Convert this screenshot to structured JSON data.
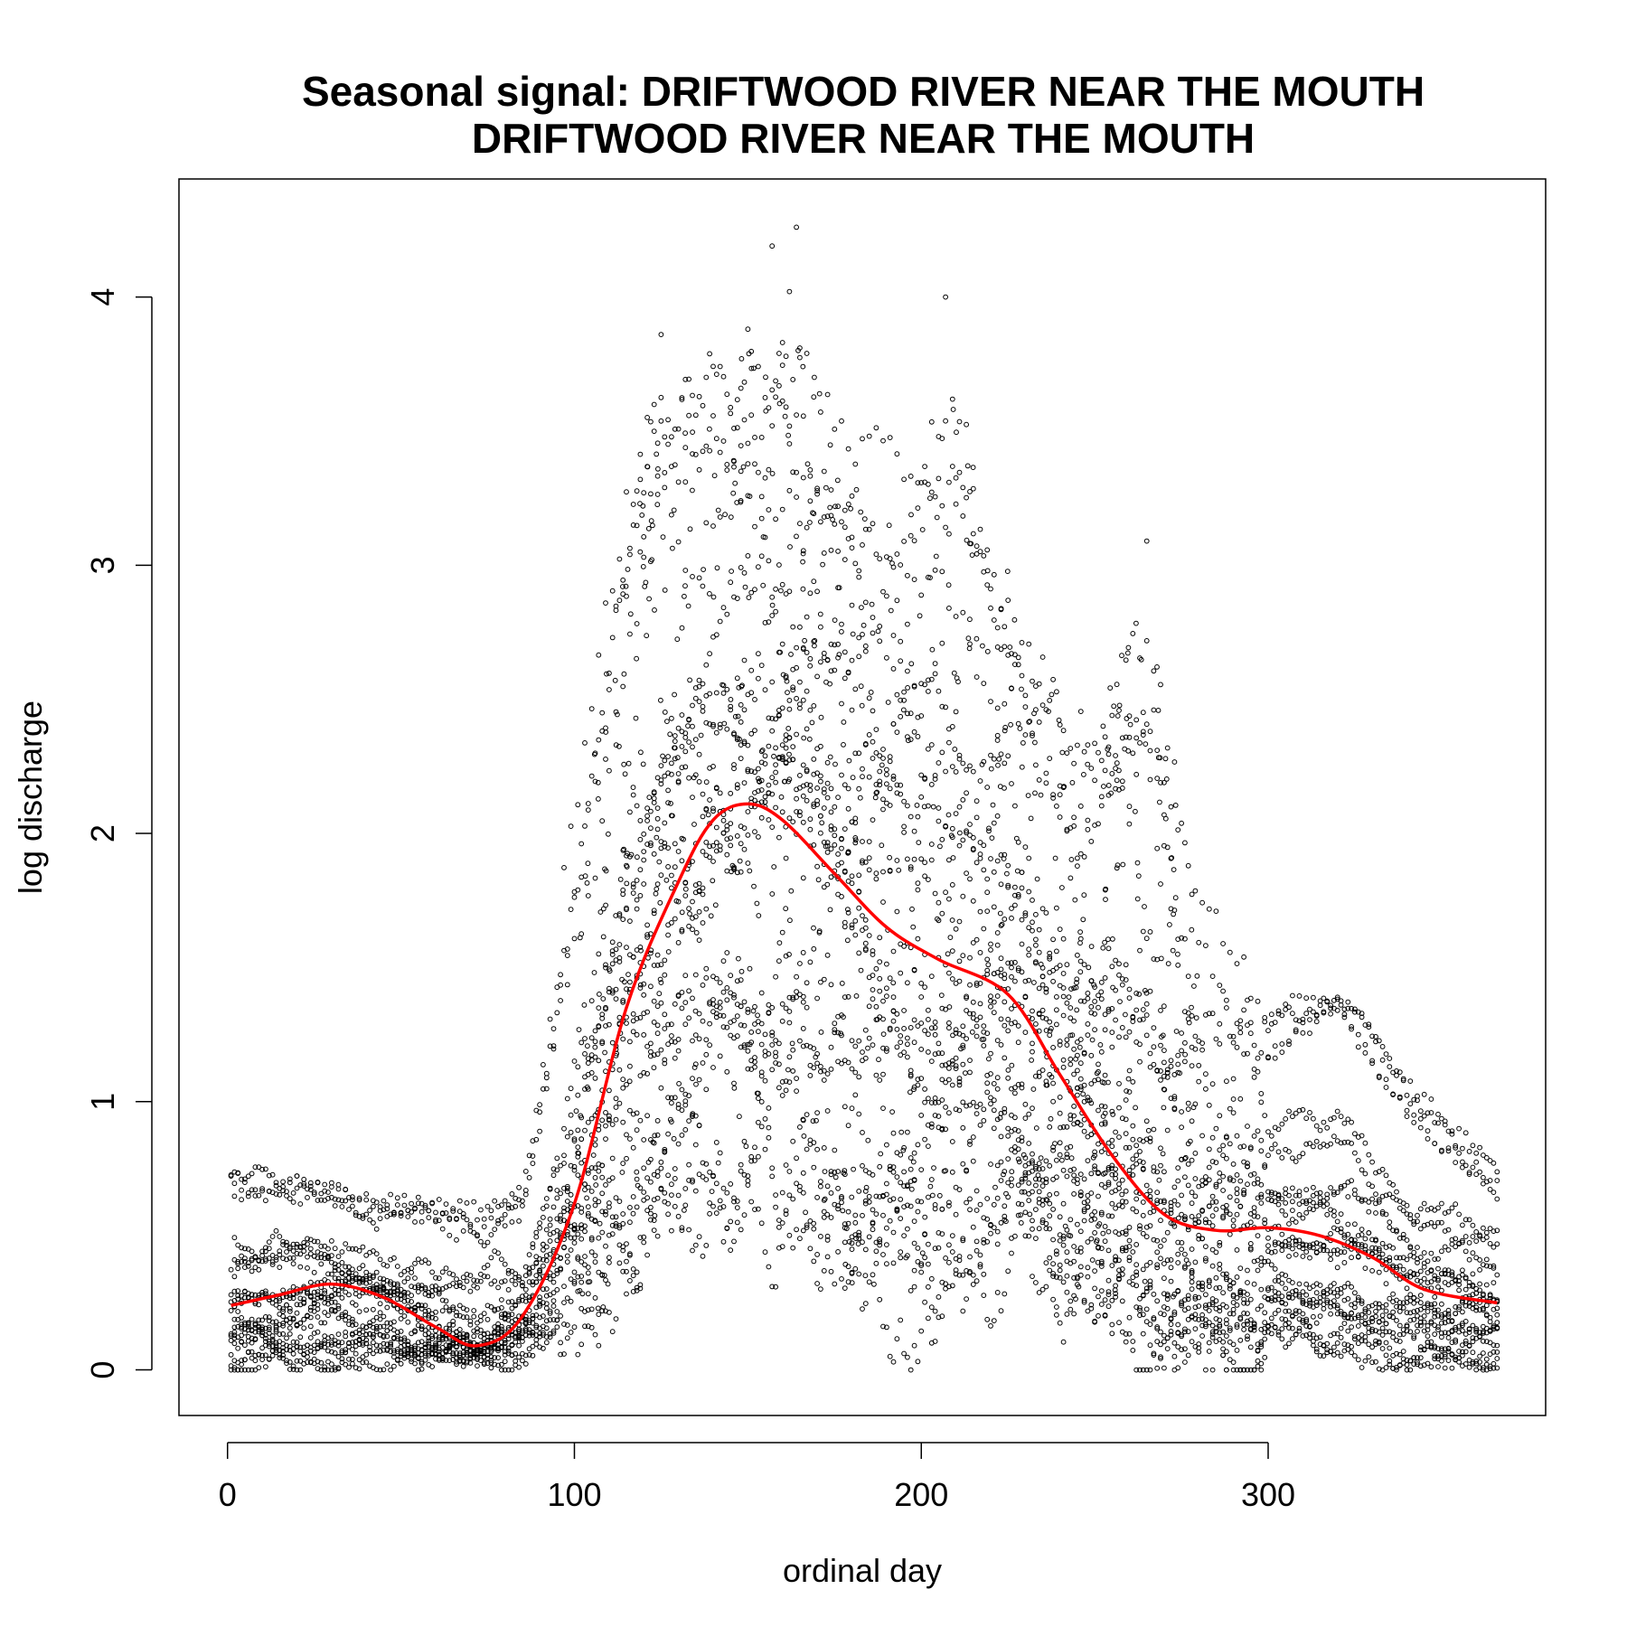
{
  "chart_data": {
    "type": "scatter",
    "title": "Seasonal signal: DRIFTWOOD RIVER NEAR THE MOUTH",
    "subtitle": "DRIFTWOOD RIVER NEAR THE MOUTH",
    "xlabel": "ordinal day",
    "ylabel": "log discharge",
    "xlim": [
      -14,
      380
    ],
    "ylim": [
      -0.17,
      4.44
    ],
    "xticks": [
      0,
      100,
      200,
      300
    ],
    "yticks": [
      0,
      1,
      2,
      3,
      4
    ],
    "grid": false,
    "legend": "none",
    "colors": {
      "points": "#000000",
      "smooth_line": "#ff0000",
      "frame": "#000000"
    },
    "seasonal_smooth": {
      "x": [
        1,
        15,
        30,
        45,
        60,
        72,
        85,
        100,
        115,
        130,
        140,
        150,
        160,
        175,
        190,
        205,
        225,
        240,
        255,
        270,
        285,
        300,
        315,
        330,
        345,
        366
      ],
      "y": [
        0.24,
        0.28,
        0.32,
        0.27,
        0.16,
        0.09,
        0.2,
        0.62,
        1.35,
        1.82,
        2.05,
        2.11,
        2.05,
        1.85,
        1.65,
        1.53,
        1.4,
        1.1,
        0.8,
        0.58,
        0.52,
        0.53,
        0.5,
        0.42,
        0.3,
        0.25
      ]
    },
    "upper_envelope": {
      "x": [
        0,
        50,
        85,
        100,
        115,
        125,
        135,
        150,
        165,
        180,
        195,
        210,
        230,
        245,
        265,
        280,
        300,
        320,
        340,
        366
      ],
      "y": [
        0.8,
        0.68,
        0.66,
        1.85,
        3.1,
        3.65,
        3.55,
        3.8,
        3.85,
        3.4,
        3.25,
        3.6,
        2.8,
        2.3,
        2.9,
        1.6,
        1.4,
        1.55,
        1.1,
        0.8
      ]
    },
    "lower_envelope": {
      "x": [
        0,
        50,
        85,
        100,
        115,
        125,
        135,
        150,
        165,
        180,
        195,
        210,
        230,
        245,
        265,
        280,
        300,
        320,
        340,
        366
      ],
      "y": [
        0.0,
        0.0,
        0.05,
        0.15,
        0.3,
        0.62,
        0.55,
        0.5,
        0.55,
        0.25,
        0.14,
        0.18,
        0.35,
        0.22,
        0.15,
        0.15,
        0.12,
        0.05,
        0.02,
        0.0
      ]
    },
    "outliers": [
      {
        "x": 157,
        "y": 4.19
      },
      {
        "x": 164,
        "y": 4.26
      },
      {
        "x": 162,
        "y": 4.02
      },
      {
        "x": 207,
        "y": 4.0
      },
      {
        "x": 125,
        "y": 3.86
      },
      {
        "x": 150,
        "y": 3.88
      },
      {
        "x": 160,
        "y": 3.83
      },
      {
        "x": 165,
        "y": 3.81
      },
      {
        "x": 265,
        "y": 3.09
      }
    ]
  }
}
